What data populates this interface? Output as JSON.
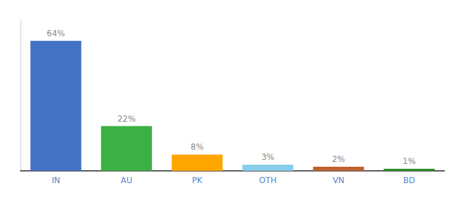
{
  "chart_data": {
    "type": "bar",
    "categories": [
      "IN",
      "AU",
      "PK",
      "OTH",
      "VN",
      "BD"
    ],
    "values": [
      64,
      22,
      8,
      3,
      2,
      1
    ],
    "value_labels": [
      "64%",
      "22%",
      "8%",
      "3%",
      "2%",
      "1%"
    ],
    "colors": [
      "#4472C4",
      "#3CB043",
      "#FFA500",
      "#87CEEB",
      "#C0622F",
      "#2E8B2E"
    ],
    "ylim": [
      0,
      74
    ],
    "grid": false,
    "data_labels": true,
    "tick_labels": "x"
  }
}
